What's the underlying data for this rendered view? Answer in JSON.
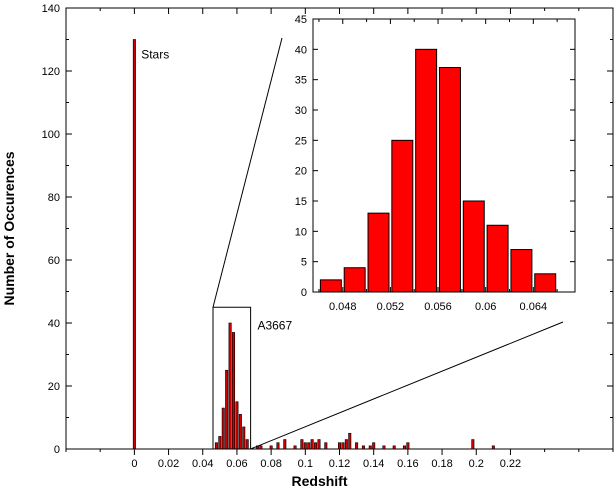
{
  "chart_data": [
    {
      "type": "bar",
      "title": "",
      "xlabel": "Redshift",
      "ylabel": "Number of Occurences",
      "xlim": [
        -0.04,
        0.28
      ],
      "ylim": [
        0,
        140
      ],
      "x_ticks": [
        0,
        0.02,
        0.04,
        0.06,
        0.08,
        0.1,
        0.12,
        0.14,
        0.16,
        0.18,
        0.2,
        0.22
      ],
      "x_tick_labels": [
        "0",
        "0.02",
        "0.04",
        "0.06",
        "0.08",
        "0.1",
        "0.12",
        "0.14",
        "0.16",
        "0.18",
        "0.2",
        "0.22"
      ],
      "y_ticks": [
        0,
        20,
        40,
        60,
        80,
        100,
        120,
        140
      ],
      "y_tick_labels": [
        "0",
        "20",
        "40",
        "60",
        "80",
        "100",
        "120",
        "140"
      ],
      "bin_width": 0.002,
      "bar_color": "#cc0000",
      "x": [
        0,
        0.048,
        0.05,
        0.052,
        0.054,
        0.056,
        0.058,
        0.06,
        0.062,
        0.064,
        0.066,
        0.072,
        0.074,
        0.08,
        0.084,
        0.088,
        0.094,
        0.098,
        0.1,
        0.102,
        0.104,
        0.106,
        0.108,
        0.112,
        0.12,
        0.122,
        0.124,
        0.126,
        0.13,
        0.134,
        0.138,
        0.14,
        0.146,
        0.152,
        0.158,
        0.16,
        0.198,
        0.21
      ],
      "values": [
        130,
        2,
        4,
        13,
        25,
        40,
        37,
        15,
        11,
        7,
        3,
        1,
        1,
        1,
        2,
        3,
        1,
        3,
        2,
        2,
        3,
        2,
        3,
        2,
        2,
        2,
        3,
        5,
        2,
        1,
        1,
        2,
        1,
        1,
        1,
        2,
        3,
        1
      ],
      "annotations": [
        {
          "text": "Stars",
          "x": 0.004,
          "y": 124
        },
        {
          "text": "A3667",
          "x": 0.072,
          "y": 38
        }
      ],
      "highlight_box": {
        "x0": 0.046,
        "x1": 0.068,
        "y0": 0,
        "y1": 45
      }
    },
    {
      "type": "bar",
      "title": "",
      "xlabel": "",
      "ylabel": "",
      "xlim": [
        0.0455,
        0.0675
      ],
      "ylim": [
        0,
        45
      ],
      "x_ticks": [
        0.048,
        0.052,
        0.056,
        0.06,
        0.064
      ],
      "x_tick_labels": [
        "0.048",
        "0.052",
        "0.056",
        "0.06",
        "0.064"
      ],
      "y_ticks": [
        0,
        5,
        10,
        15,
        20,
        25,
        30,
        35,
        40,
        45
      ],
      "y_tick_labels": [
        "0",
        "5",
        "10",
        "15",
        "20",
        "25",
        "30",
        "35",
        "40",
        "45"
      ],
      "bin_width": 0.002,
      "bar_color": "#ff0000",
      "x": [
        0.047,
        0.049,
        0.051,
        0.053,
        0.055,
        0.057,
        0.059,
        0.061,
        0.063,
        0.065
      ],
      "values": [
        2,
        4,
        13,
        25,
        40,
        37,
        15,
        11,
        7,
        3
      ]
    }
  ]
}
